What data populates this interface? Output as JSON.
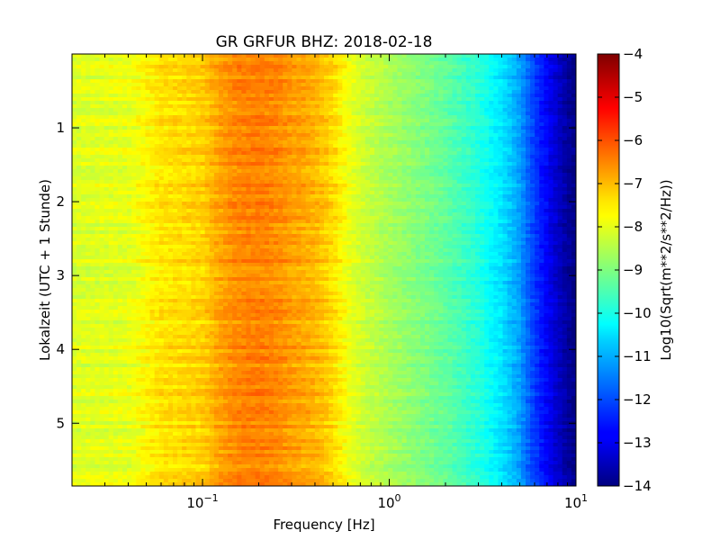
{
  "chart_data": {
    "type": "heatmap",
    "title": "GR GRFUR BHZ: 2018-02-18",
    "xlabel": "Frequency [Hz]",
    "ylabel": "Lokalzeit (UTC + 1 Stunde)",
    "x_scale": "log",
    "xlim": [
      0.02,
      10
    ],
    "ylim": [
      5.85,
      0.0
    ],
    "x_ticks": [
      {
        "value": 0.1,
        "base": "10",
        "exp": "−1"
      },
      {
        "value": 1,
        "base": "10",
        "exp": "0"
      },
      {
        "value": 10,
        "base": "10",
        "exp": "1"
      }
    ],
    "y_ticks": [
      {
        "value": 1,
        "label": "1"
      },
      {
        "value": 2,
        "label": "2"
      },
      {
        "value": 3,
        "label": "3"
      },
      {
        "value": 4,
        "label": "4"
      },
      {
        "value": 5,
        "label": "5"
      }
    ],
    "colorbar": {
      "label": "Log10(Sqrt(m**2/s**2/Hz))",
      "colormap": "jet",
      "range": [
        -14,
        -4
      ],
      "ticks": [
        {
          "value": -4,
          "label": "−4"
        },
        {
          "value": -5,
          "label": "−5"
        },
        {
          "value": -6,
          "label": "−6"
        },
        {
          "value": -7,
          "label": "−7"
        },
        {
          "value": -8,
          "label": "−8"
        },
        {
          "value": -9,
          "label": "−9"
        },
        {
          "value": -10,
          "label": "−10"
        },
        {
          "value": -11,
          "label": "−11"
        },
        {
          "value": -12,
          "label": "−12"
        },
        {
          "value": -13,
          "label": "−13"
        },
        {
          "value": -14,
          "label": "−14"
        }
      ]
    },
    "spectrum_profile": {
      "frequencies": [
        0.02,
        0.04,
        0.06,
        0.08,
        0.1,
        0.12,
        0.15,
        0.2,
        0.25,
        0.3,
        0.4,
        0.5,
        0.6,
        0.7,
        1.0,
        1.5,
        2.0,
        3.0,
        4.0,
        5.0,
        6.0,
        7.0,
        8.0,
        9.0,
        10.0
      ],
      "levels": [
        -8.1,
        -8.0,
        -7.5,
        -7.4,
        -7.3,
        -6.9,
        -6.6,
        -6.5,
        -6.6,
        -6.8,
        -7.0,
        -7.4,
        -7.9,
        -8.2,
        -8.6,
        -9.0,
        -9.3,
        -9.9,
        -10.5,
        -11.2,
        -12.2,
        -12.8,
        -13.3,
        -13.7,
        -14.0
      ]
    },
    "time_bins": 120
  }
}
